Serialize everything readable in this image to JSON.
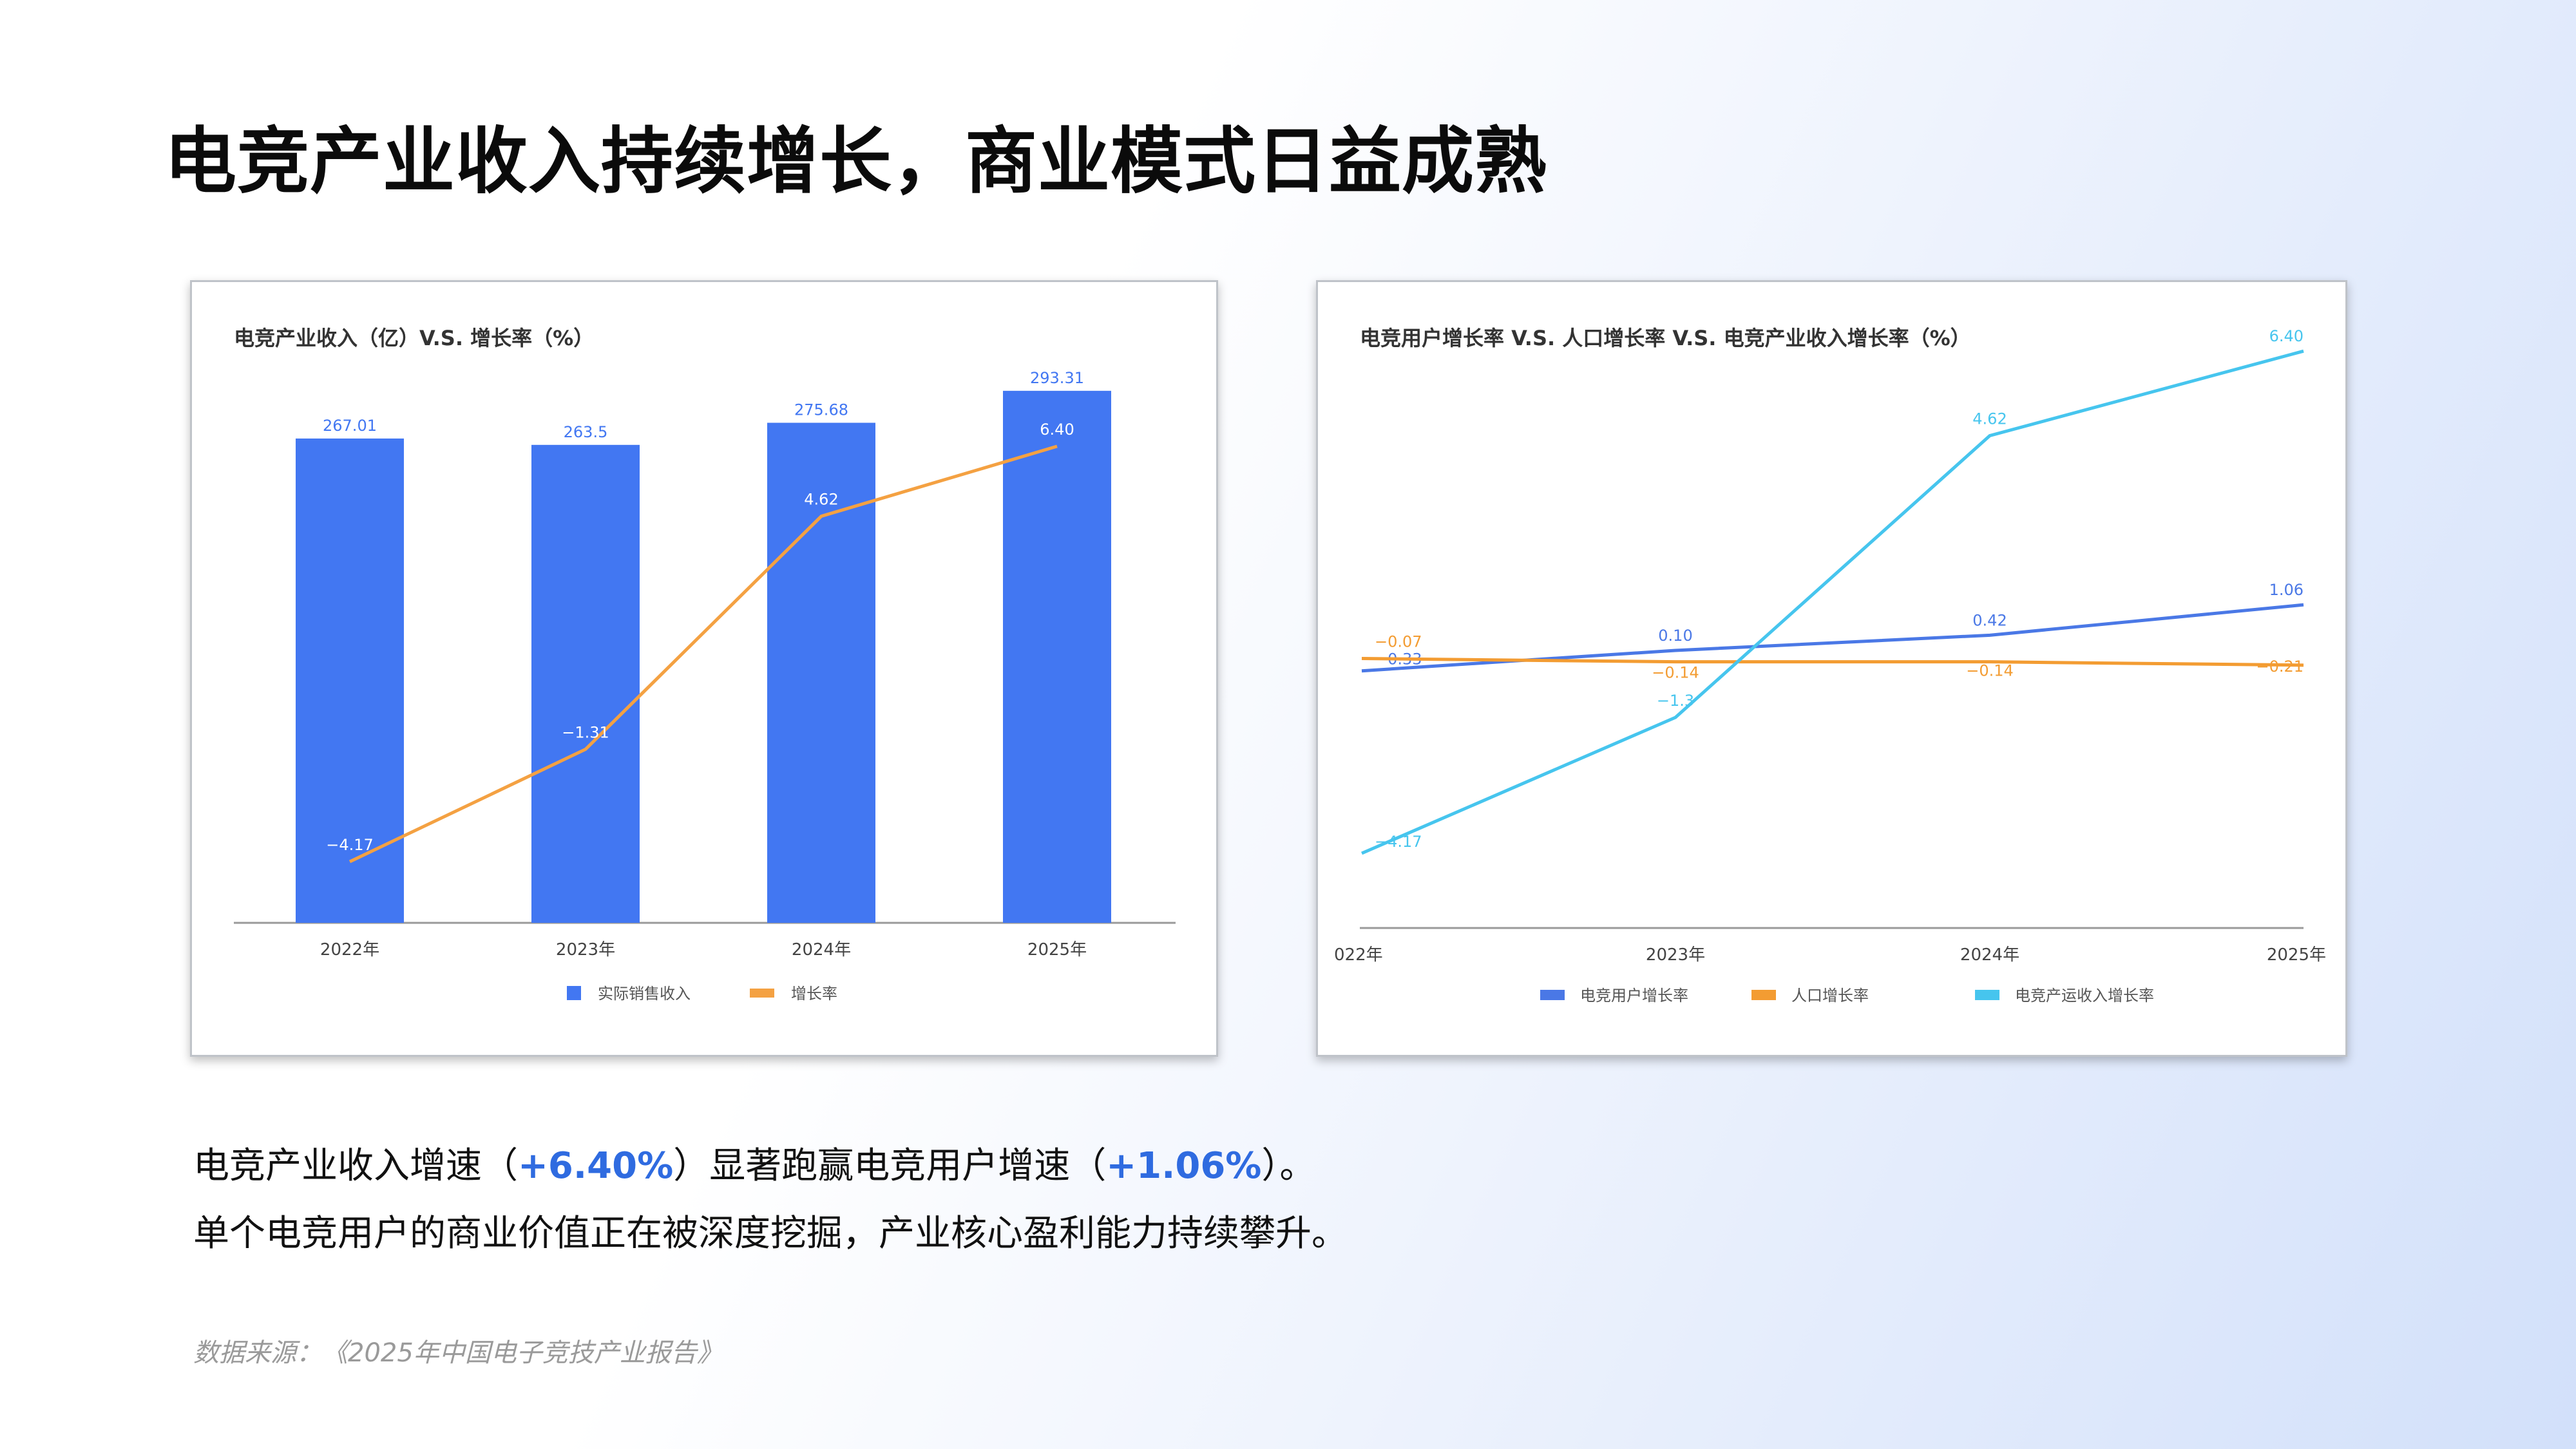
{
  "page": {
    "title": "电竞产业收入持续增长，商业模式日益成熟",
    "summary": {
      "line1_a": "电竞产业收入增速（",
      "line1_b": "+6.40%",
      "line1_c": "）显著跑赢电竞用户增速（",
      "line1_d": "+1.06%",
      "line1_e": "）。",
      "line2": "单个电竞用户的商业价值正在被深度挖掘，产业核心盈利能力持续攀升。"
    },
    "source": "数据来源：《2025年中国电子竞技产业报告》"
  },
  "colors": {
    "bar_blue": "#4277f2",
    "orange": "#f4a142",
    "user_growth_blue": "#4a78e6",
    "population_orange": "#f39c32",
    "industry_cyan": "#46c5ee",
    "highlight": "#2f6be0"
  },
  "chart_data": [
    {
      "type": "bar",
      "title": "电竞产业收入（亿）V.S. 增长率（%）",
      "categories": [
        "2022年",
        "2023年",
        "2024年",
        "2025年"
      ],
      "series": [
        {
          "name": "实际销售收入",
          "type": "bar",
          "values": [
            267.01,
            263.5,
            275.68,
            293.31
          ],
          "labels": [
            "267.01",
            "263.5",
            "275.68",
            "293.31"
          ],
          "color": "#4277f2"
        },
        {
          "name": "增长率",
          "type": "line",
          "values": [
            -4.17,
            -1.31,
            4.62,
            6.4
          ],
          "labels": [
            "−4.17",
            "−1.31",
            "4.62",
            "6.40"
          ],
          "color": "#f4a142"
        }
      ],
      "legend_position": "bottom",
      "grid": false
    },
    {
      "type": "line",
      "title": "电竞用户增长率 V.S. 人口增长率 V.S. 电竞产业收入增长率（%）",
      "categories": [
        "2022年",
        "2023年",
        "2024年",
        "2025年"
      ],
      "category_labels": [
        "022年",
        "2023年",
        "2024年",
        "2025年"
      ],
      "series": [
        {
          "name": "电竞用户增长率",
          "values": [
            -0.33,
            0.1,
            0.42,
            1.06
          ],
          "labels": [
            "−0.33",
            "0.10",
            "0.42",
            "1.06"
          ],
          "color": "#4a78e6"
        },
        {
          "name": "人口增长率",
          "values": [
            -0.07,
            -0.14,
            -0.14,
            -0.21
          ],
          "labels": [
            "−0.07",
            "−0.14",
            "−0.14",
            "−0.21"
          ],
          "color": "#f39c32"
        },
        {
          "name": "电竞产运收入增长率",
          "values": [
            -4.17,
            -1.31,
            4.62,
            6.4
          ],
          "labels": [
            "−4.17",
            "−1.3",
            "4.62",
            "6.40"
          ],
          "color": "#46c5ee"
        }
      ],
      "legend_position": "bottom",
      "grid": false
    }
  ]
}
